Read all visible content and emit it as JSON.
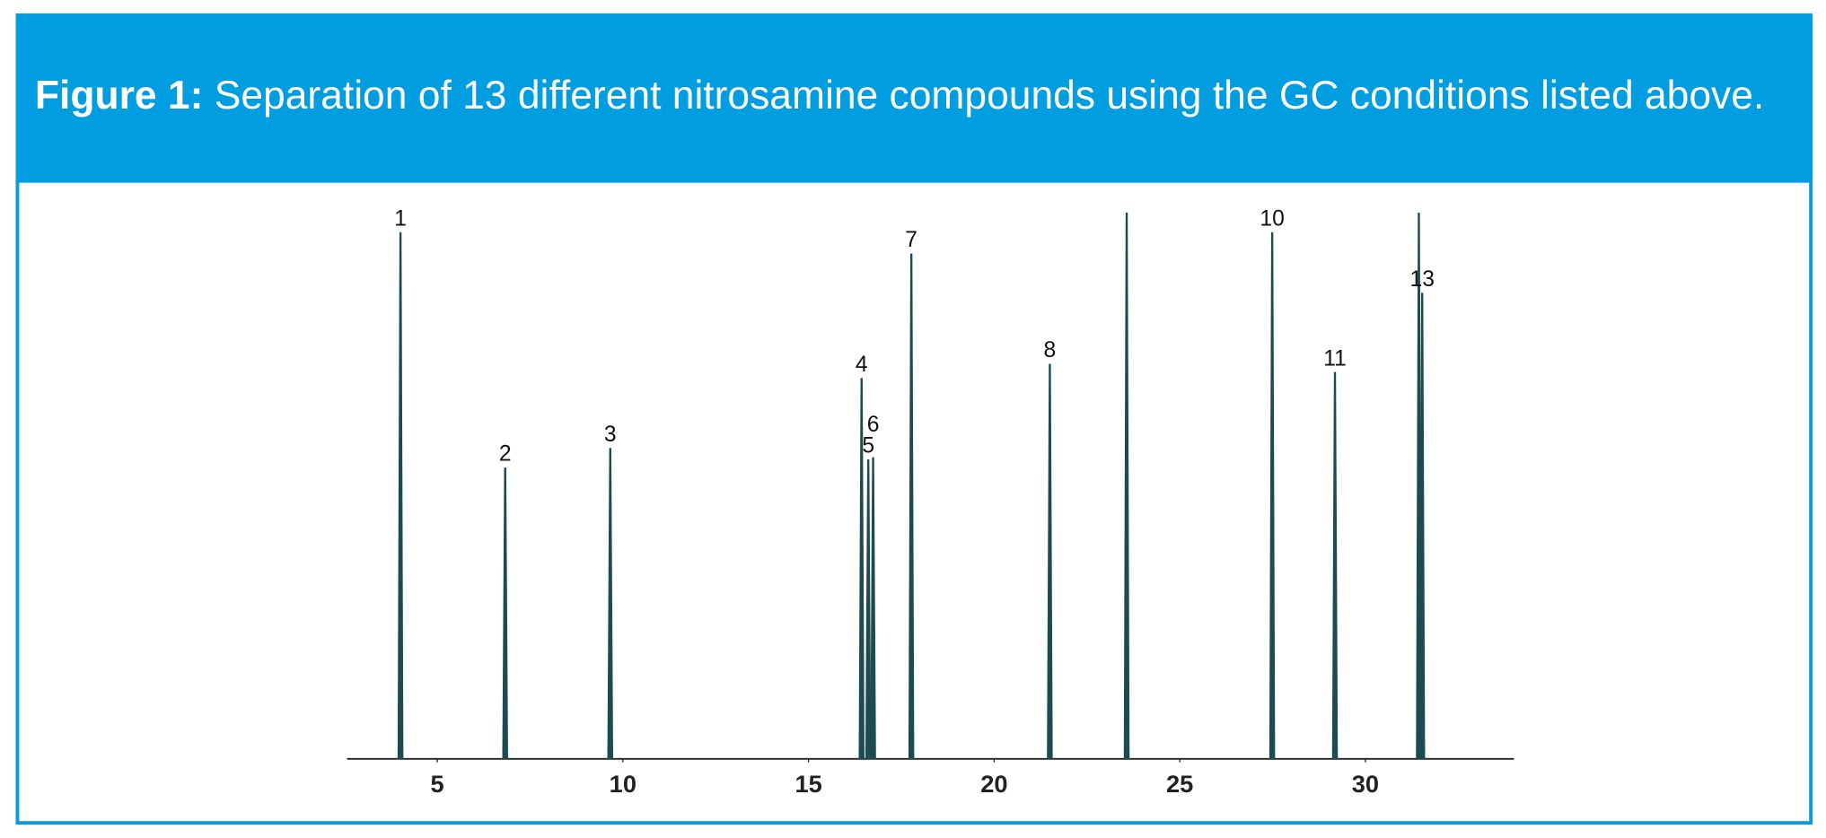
{
  "chart_data": {
    "type": "chromatogram",
    "title_label": "Figure 1:",
    "title": "Separation of 13 different nitrosamine compounds using the GC conditions listed above.",
    "x": [
      4.01,
      6.83,
      9.66,
      16.43,
      16.61,
      16.74,
      17.77,
      21.5,
      23.57,
      27.49,
      29.18,
      31.44,
      31.53
    ],
    "values": [
      96.4,
      53.3,
      56.9,
      69.7,
      54.8,
      55.2,
      92.5,
      72.3,
      100,
      96.4,
      70.8,
      100,
      85.3
    ],
    "labels": [
      "1",
      "2",
      "3",
      "4",
      "5",
      "6",
      "7",
      "8",
      null,
      "10",
      "11",
      null,
      "13"
    ],
    "color": "#1d4b4f",
    "xlim": [
      2.57,
      34.0
    ],
    "ylim": [
      0,
      100
    ],
    "xticks": [
      5,
      10,
      15,
      20,
      25,
      30
    ]
  }
}
